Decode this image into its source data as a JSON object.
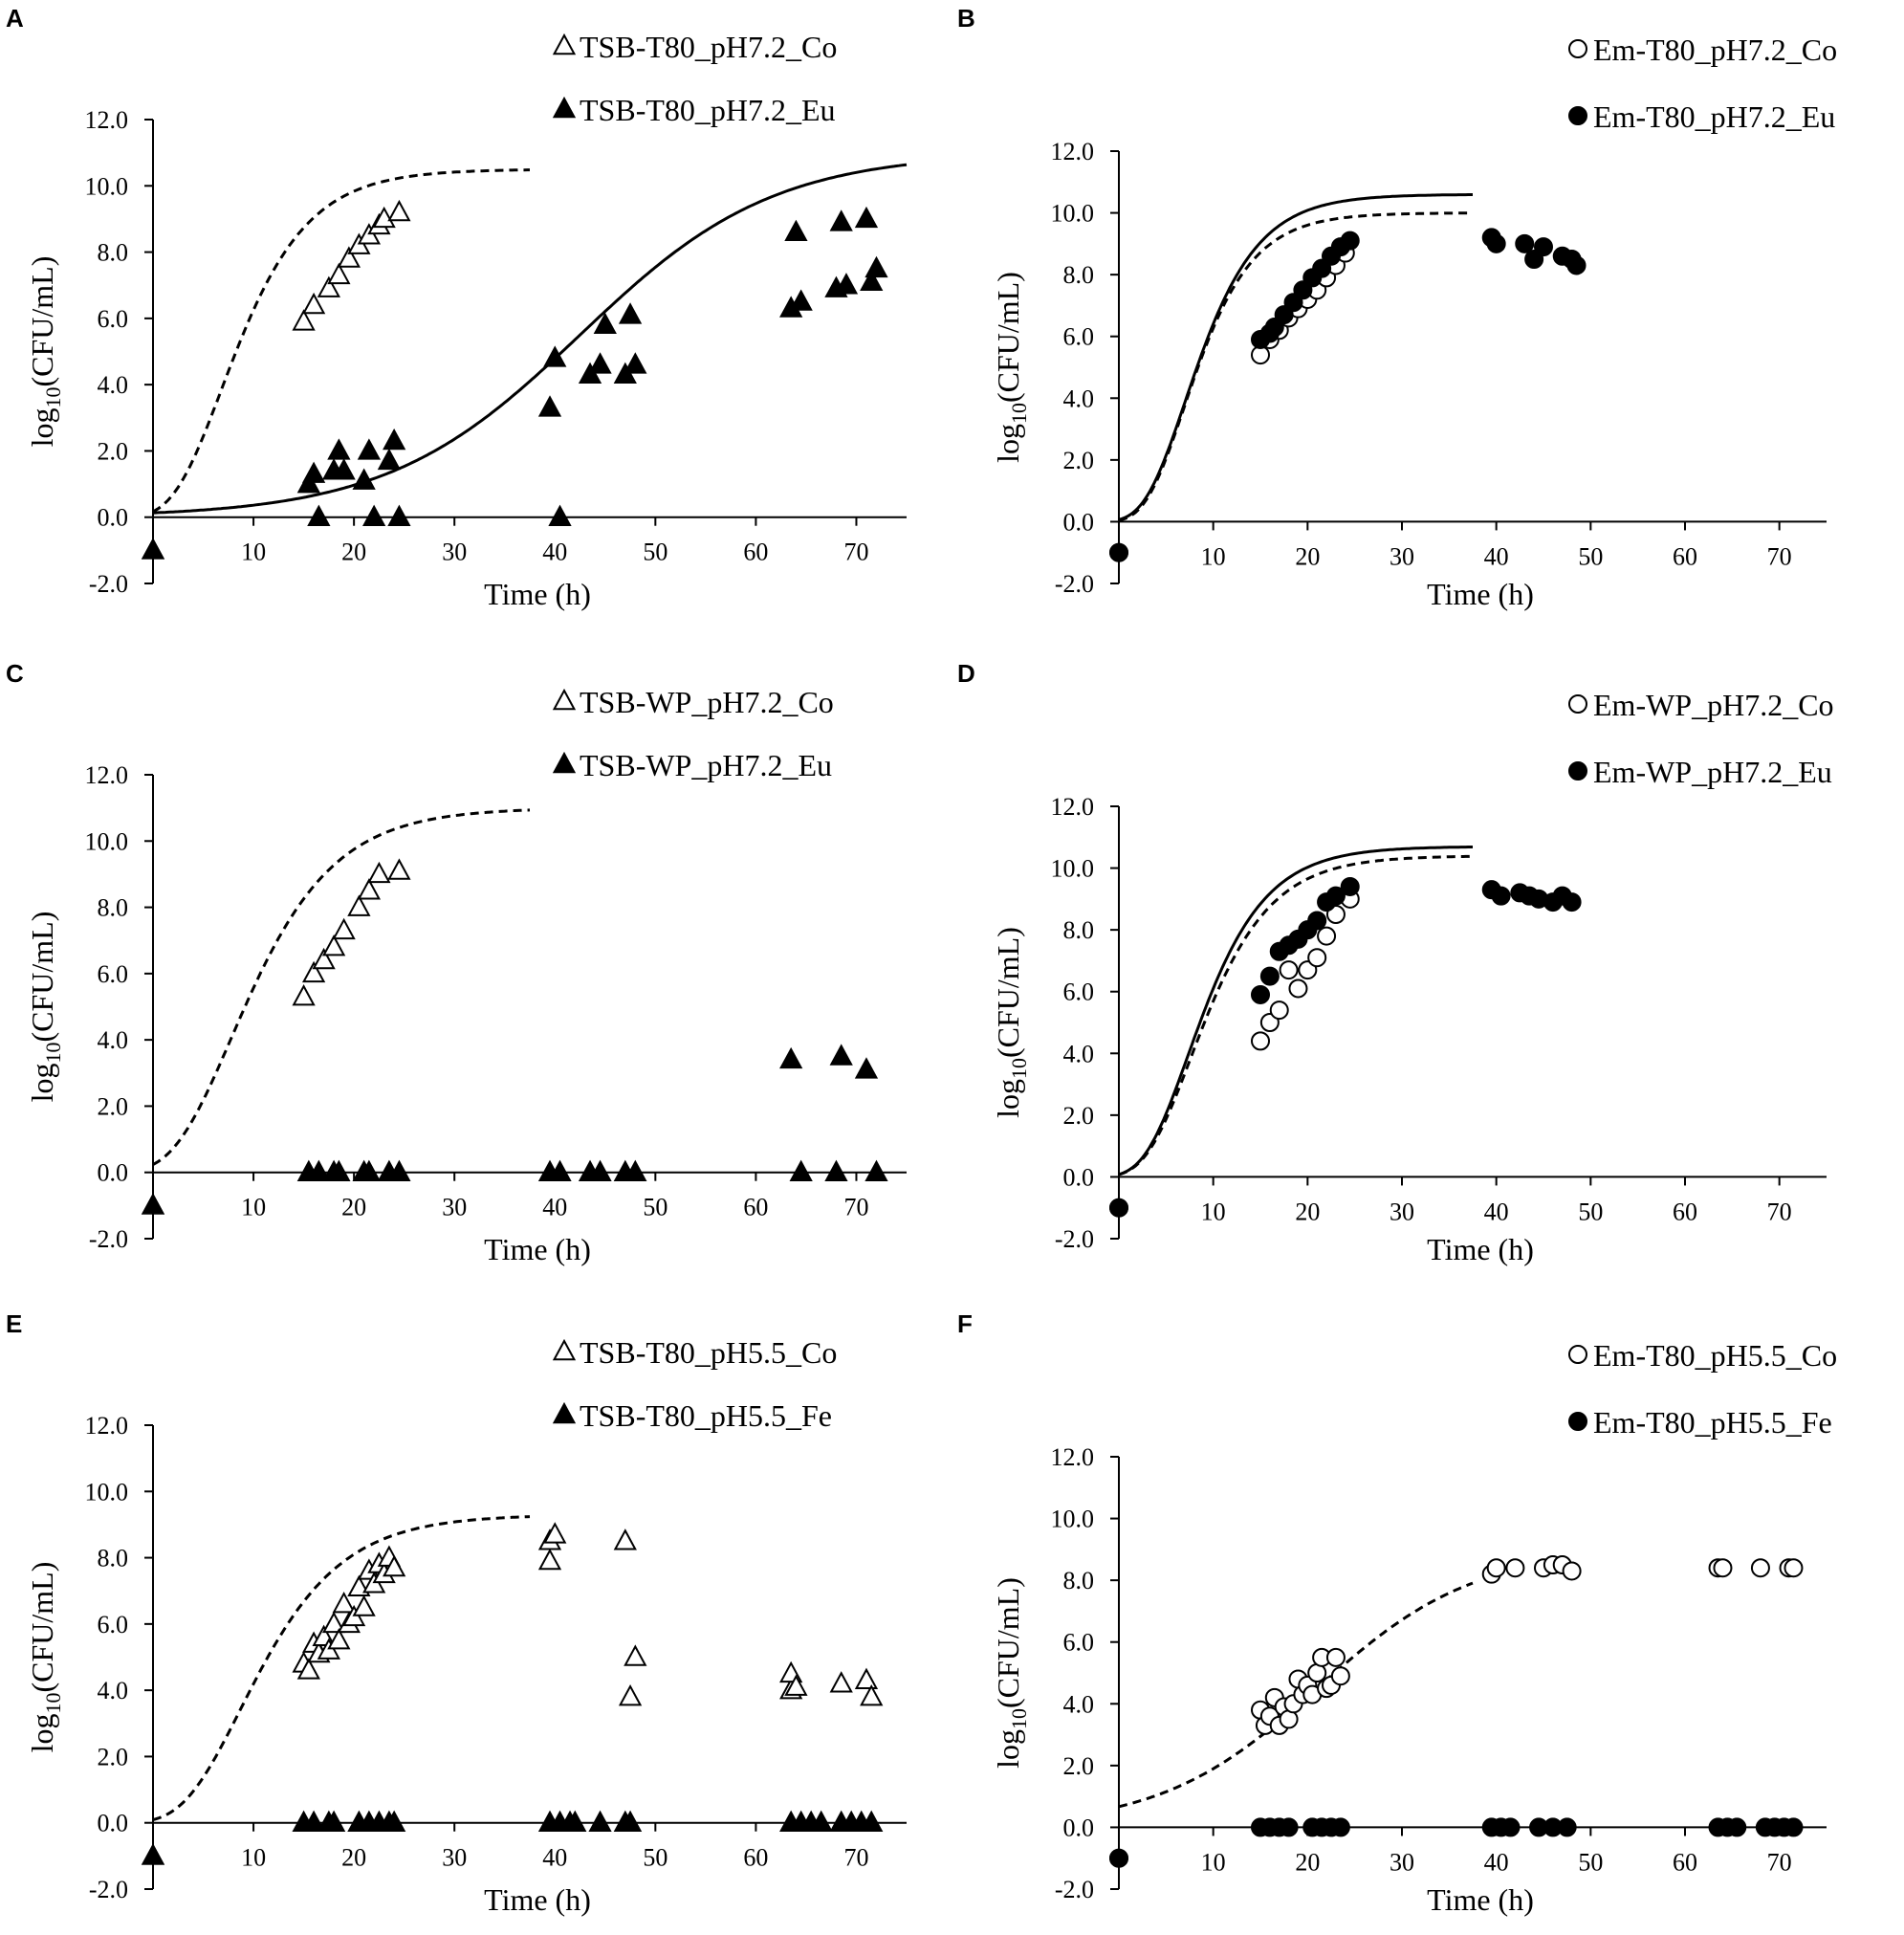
{
  "chart_data": [
    {
      "panel": "A",
      "type": "scatter",
      "xlabel": "Time (h)",
      "ylabel_base": "log",
      "ylabel_sub": "10",
      "ylabel_rest": "(CFU/mL)",
      "xticks": [
        "10",
        "20",
        "30",
        "40",
        "50",
        "60",
        "70"
      ],
      "yticks": [
        "-2.0",
        "0.0",
        "2.0",
        "4.0",
        "6.0",
        "8.0",
        "10.0",
        "12.0"
      ],
      "xlim": [
        0,
        75
      ],
      "ylim": [
        -2,
        12
      ],
      "series": [
        {
          "name": "TSB-T80_pH7.2_Co",
          "marker": "triangle-open",
          "x": [
            0,
            15,
            16,
            17.5,
            18.5,
            19.5,
            20.5,
            21.5,
            22.5,
            23,
            24.5
          ],
          "y": [
            -1,
            5.9,
            6.4,
            6.9,
            7.3,
            7.8,
            8.2,
            8.5,
            8.8,
            9.0,
            9.2
          ]
        },
        {
          "name": "TSB-T80_pH7.2_Eu",
          "marker": "triangle-filled",
          "x": [
            0,
            15.5,
            16,
            16.5,
            18,
            18.5,
            19,
            21,
            21.5,
            22,
            23.5,
            24,
            24.5,
            39.5,
            40,
            40.5,
            43.5,
            44.5,
            45,
            47,
            47.5,
            48,
            63.5,
            64,
            64.5,
            68,
            68.5,
            69,
            71,
            71.5,
            72
          ],
          "y": [
            -1,
            1.0,
            1.3,
            0,
            1.4,
            2.0,
            1.4,
            1.1,
            2.0,
            0,
            1.7,
            2.3,
            0,
            3.3,
            4.8,
            0,
            4.3,
            4.6,
            5.8,
            4.3,
            6.1,
            4.6,
            6.3,
            8.6,
            6.5,
            6.9,
            8.9,
            7.0,
            9.0,
            7.1,
            7.5
          ]
        }
      ],
      "curves": [
        {
          "style": "dashed",
          "model": "gompertz",
          "params": [
            10.5,
            0.8,
            2.0
          ],
          "range": [
            0,
            37.5
          ]
        },
        {
          "style": "solid",
          "model": "logistic",
          "params": [
            11.0,
            0.104,
            42.5
          ],
          "range": [
            0,
            75
          ]
        }
      ]
    },
    {
      "panel": "B",
      "type": "scatter",
      "xlabel": "Time (h)",
      "ylabel_base": "log",
      "ylabel_sub": "10",
      "ylabel_rest": "(CFU/mL)",
      "xticks": [
        "10",
        "20",
        "30",
        "40",
        "50",
        "60",
        "70"
      ],
      "yticks": [
        "-2.0",
        "0.0",
        "2.0",
        "4.0",
        "6.0",
        "8.0",
        "10.0",
        "12.0"
      ],
      "xlim": [
        0,
        75
      ],
      "ylim": [
        -2,
        12
      ],
      "series": [
        {
          "name": "Em-T80_pH7.2_Co",
          "marker": "circle-open",
          "x": [
            0,
            15,
            16,
            17,
            18,
            19,
            20,
            21,
            22,
            23,
            24
          ],
          "y": [
            -1,
            5.4,
            5.9,
            6.2,
            6.6,
            6.9,
            7.2,
            7.5,
            7.9,
            8.3,
            8.7
          ]
        },
        {
          "name": "Em-T80_pH7.2_Eu",
          "marker": "circle-filled",
          "x": [
            0,
            15,
            16,
            16.5,
            17.5,
            18.5,
            19.5,
            20.5,
            21.5,
            22.5,
            23.5,
            24.5,
            39.5,
            40,
            43,
            44,
            45,
            47,
            48,
            48.5
          ],
          "y": [
            -1,
            5.9,
            6.1,
            6.3,
            6.7,
            7.1,
            7.5,
            7.9,
            8.2,
            8.6,
            8.9,
            9.1,
            9.2,
            9.0,
            9.0,
            8.5,
            8.9,
            8.6,
            8.5,
            8.3
          ]
        }
      ],
      "curves": [
        {
          "style": "dashed",
          "model": "gompertz",
          "params": [
            10.0,
            0.9,
            2.8
          ],
          "range": [
            0,
            37.5
          ]
        },
        {
          "style": "solid",
          "model": "gompertz",
          "params": [
            10.6,
            0.9,
            2.7
          ],
          "range": [
            0,
            37.5
          ]
        }
      ]
    },
    {
      "panel": "C",
      "type": "scatter",
      "xlabel": "Time (h)",
      "ylabel_base": "log",
      "ylabel_sub": "10",
      "ylabel_rest": "(CFU/mL)",
      "xticks": [
        "10",
        "20",
        "30",
        "40",
        "50",
        "60",
        "70"
      ],
      "yticks": [
        "-2.0",
        "0.0",
        "2.0",
        "4.0",
        "6.0",
        "8.0",
        "10.0",
        "12.0"
      ],
      "xlim": [
        0,
        75
      ],
      "ylim": [
        -2,
        12
      ],
      "series": [
        {
          "name": "TSB-WP_pH7.2_Co",
          "marker": "triangle-open",
          "x": [
            0,
            15,
            16,
            17,
            18,
            19,
            20.5,
            21.5,
            22.5,
            24.5
          ],
          "y": [
            -1,
            5.3,
            6.0,
            6.4,
            6.8,
            7.3,
            8.0,
            8.5,
            9.0,
            9.1
          ]
        },
        {
          "name": "TSB-WP_pH7.2_Eu",
          "marker": "triangle-filled",
          "x": [
            0,
            15.5,
            16.5,
            18,
            18.5,
            21,
            21.5,
            23.5,
            24.5,
            39.5,
            40.5,
            43.5,
            44.5,
            47,
            48,
            63.5,
            64.5,
            68,
            68.5,
            71,
            72
          ],
          "y": [
            -1,
            0,
            0,
            0,
            0,
            0,
            0,
            0,
            0,
            0,
            0,
            0,
            0,
            0,
            0,
            3.4,
            0,
            0,
            3.5,
            3.1,
            0
          ]
        }
      ],
      "curves": [
        {
          "style": "dashed",
          "model": "gompertz",
          "params": [
            11.0,
            0.7,
            2.0
          ],
          "range": [
            0,
            37.5
          ]
        }
      ]
    },
    {
      "panel": "D",
      "type": "scatter",
      "xlabel": "Time (h)",
      "ylabel_base": "log",
      "ylabel_sub": "10",
      "ylabel_rest": "(CFU/mL)",
      "xticks": [
        "10",
        "20",
        "30",
        "40",
        "50",
        "60",
        "70"
      ],
      "yticks": [
        "-2.0",
        "0.0",
        "2.0",
        "4.0",
        "6.0",
        "8.0",
        "10.0",
        "12.0"
      ],
      "xlim": [
        0,
        75
      ],
      "ylim": [
        -2,
        12
      ],
      "series": [
        {
          "name": "Em-WP_pH7.2_Co",
          "marker": "circle-open",
          "x": [
            0,
            15,
            16,
            17,
            18,
            19,
            20,
            21,
            22,
            23,
            24.5
          ],
          "y": [
            -1,
            4.4,
            5.0,
            5.4,
            6.7,
            6.1,
            6.7,
            7.1,
            7.8,
            8.5,
            9.0
          ]
        },
        {
          "name": "Em-WP_pH7.2_Eu",
          "marker": "circle-filled",
          "x": [
            0,
            15,
            16,
            17,
            18,
            19,
            20,
            21,
            22,
            23,
            24.5,
            39.5,
            40.5,
            42.5,
            43.5,
            44.5,
            46,
            47,
            48
          ],
          "y": [
            -1,
            5.9,
            6.5,
            7.3,
            7.5,
            7.7,
            8.0,
            8.3,
            8.9,
            9.1,
            9.4,
            9.3,
            9.1,
            9.2,
            9.1,
            9.0,
            8.9,
            9.1,
            8.9
          ]
        }
      ],
      "curves": [
        {
          "style": "dashed",
          "model": "gompertz",
          "params": [
            10.4,
            0.8,
            2.8
          ],
          "range": [
            0,
            37.5
          ]
        },
        {
          "style": "solid",
          "model": "gompertz",
          "params": [
            10.7,
            0.85,
            2.7
          ],
          "range": [
            0,
            37.5
          ]
        }
      ]
    },
    {
      "panel": "E",
      "type": "scatter",
      "xlabel": "Time (h)",
      "ylabel_base": "log",
      "ylabel_sub": "10",
      "ylabel_rest": "(CFU/mL)",
      "xticks": [
        "10",
        "20",
        "30",
        "40",
        "50",
        "60",
        "70"
      ],
      "yticks": [
        "-2.0",
        "0.0",
        "2.0",
        "4.0",
        "6.0",
        "8.0",
        "10.0",
        "12.0"
      ],
      "xlim": [
        0,
        75
      ],
      "ylim": [
        -2,
        12
      ],
      "series": [
        {
          "name": "TSB-T80_pH5.5_Co",
          "marker": "triangle-open",
          "x": [
            0,
            15,
            15.5,
            16,
            16.5,
            17,
            17.5,
            18,
            18.5,
            19,
            19.5,
            20,
            20.5,
            21,
            21.5,
            22,
            22.5,
            23,
            23.5,
            24,
            39.5,
            39.5,
            40,
            47,
            47.5,
            48,
            63.5,
            63.5,
            64,
            68.5,
            71,
            71.5
          ],
          "y": [
            -1,
            4.8,
            4.6,
            5.4,
            5.1,
            5.6,
            5.2,
            6.0,
            5.5,
            6.6,
            6.0,
            6.2,
            7.1,
            6.5,
            7.6,
            7.2,
            7.8,
            7.5,
            8.0,
            7.7,
            8.5,
            7.9,
            8.7,
            8.5,
            3.8,
            5.0,
            4.0,
            4.5,
            4.1,
            4.2,
            4.3,
            3.8
          ]
        },
        {
          "name": "TSB-T80_pH5.5_Fe",
          "marker": "triangle-filled",
          "x": [
            0,
            15,
            16,
            17.5,
            18,
            20.5,
            21.5,
            22.5,
            23.5,
            24,
            39.5,
            40.5,
            41.5,
            42,
            44.5,
            47,
            47.5,
            63.5,
            64.5,
            65.5,
            66.5,
            68.5,
            69.5,
            70.5,
            71.5
          ],
          "y": [
            -1,
            0,
            0,
            0,
            0,
            0,
            0,
            0,
            0,
            0,
            0,
            0,
            0,
            0,
            0,
            0,
            0,
            0,
            0,
            0,
            0,
            0,
            0,
            0,
            0
          ]
        }
      ],
      "curves": [
        {
          "style": "dashed",
          "model": "gompertz",
          "params": [
            9.3,
            0.6,
            3.0
          ],
          "range": [
            0,
            37.5
          ]
        }
      ]
    },
    {
      "panel": "F",
      "type": "scatter",
      "xlabel": "Time (h)",
      "ylabel_base": "log",
      "ylabel_sub": "10",
      "ylabel_rest": "(CFU/mL)",
      "xticks": [
        "10",
        "20",
        "30",
        "40",
        "50",
        "60",
        "70"
      ],
      "yticks": [
        "-2.0",
        "0.0",
        "2.0",
        "4.0",
        "6.0",
        "8.0",
        "10.0",
        "12.0"
      ],
      "xlim": [
        0,
        75
      ],
      "ylim": [
        -2,
        12
      ],
      "series": [
        {
          "name": "Em-T80_pH5.5_Co",
          "marker": "circle-open",
          "x": [
            0,
            15,
            15.5,
            16,
            16.5,
            17,
            17.5,
            18,
            18.5,
            19,
            19.5,
            20,
            20.5,
            21,
            21.5,
            22,
            22.5,
            23,
            23.5,
            39.5,
            40,
            42,
            45,
            46,
            47,
            48,
            63.5,
            64,
            68,
            71,
            71.5
          ],
          "y": [
            -1,
            3.8,
            3.3,
            3.6,
            4.2,
            3.3,
            3.9,
            3.5,
            4.0,
            4.8,
            4.3,
            4.6,
            4.3,
            5.0,
            5.5,
            4.5,
            4.6,
            5.5,
            4.9,
            8.2,
            8.4,
            8.4,
            8.4,
            8.5,
            8.5,
            8.3,
            8.4,
            8.4,
            8.4,
            8.4,
            8.4
          ]
        },
        {
          "name": "Em-T80_pH5.5_Fe",
          "marker": "circle-filled",
          "x": [
            0,
            15,
            16,
            17,
            18,
            20.5,
            21.5,
            22.5,
            23.5,
            39.5,
            40.5,
            41.5,
            44.5,
            46,
            47.5,
            63.5,
            64.5,
            65.5,
            68.5,
            69.5,
            70.5,
            71.5
          ],
          "y": [
            -1,
            0,
            0,
            0,
            0,
            0,
            0,
            0,
            0,
            0,
            0,
            0,
            0,
            0,
            0,
            0,
            0,
            0,
            0,
            0,
            0,
            0
          ]
        }
      ],
      "curves": [
        {
          "style": "dashed",
          "model": "logistic",
          "params": [
            9.0,
            0.12,
            21.0
          ],
          "range": [
            0,
            37.5
          ]
        }
      ]
    }
  ]
}
